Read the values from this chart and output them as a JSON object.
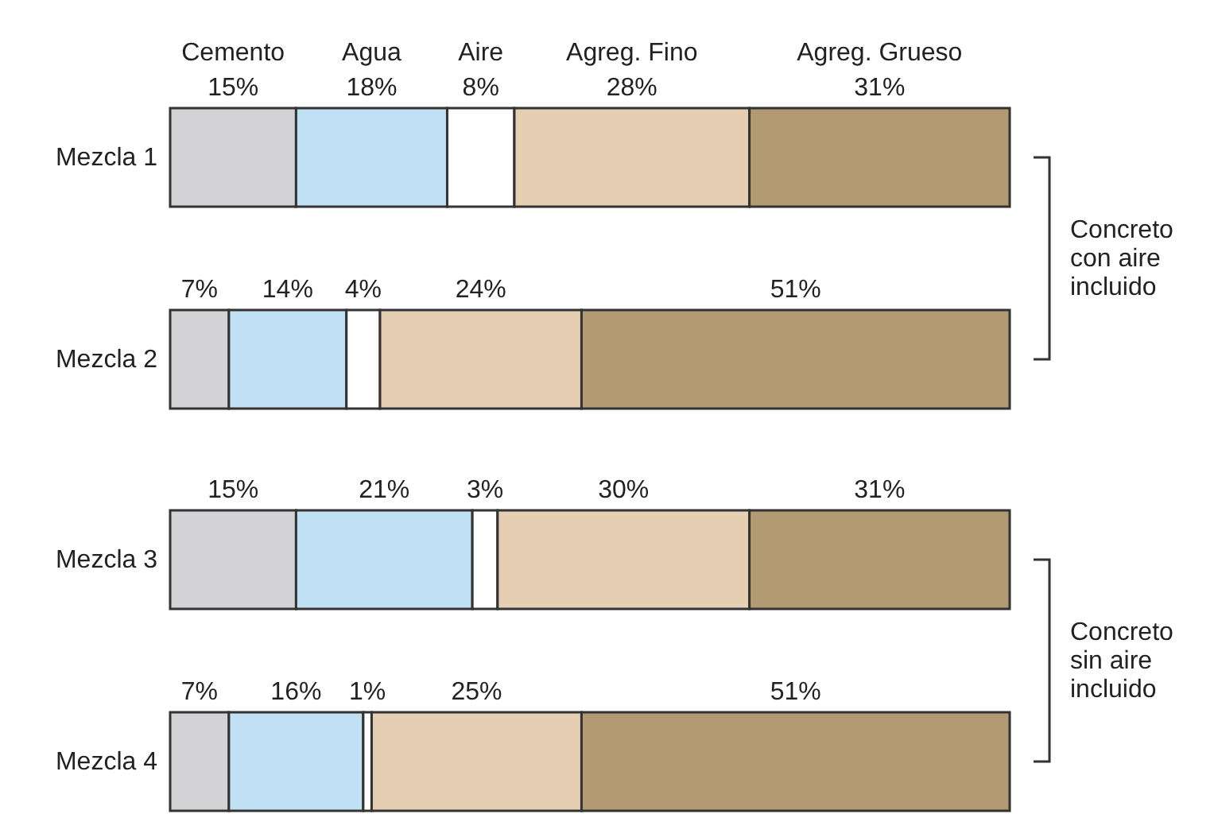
{
  "chart_data": {
    "type": "bar",
    "orientation": "horizontal",
    "stacked": true,
    "tick_labels": "y",
    "categories": [
      "Mezcla 1",
      "Mezcla 2",
      "Mezcla 3",
      "Mezcla 4"
    ],
    "series": [
      {
        "name": "Cemento",
        "color": "#d3d3d5",
        "values": [
          15,
          7,
          15,
          7
        ],
        "value_labels": [
          "15%",
          "7%",
          "15%",
          "7%"
        ]
      },
      {
        "name": "Agua",
        "color": "#bfe1f3",
        "values": [
          18,
          14,
          21,
          16
        ],
        "value_labels": [
          "18%",
          "14%",
          "21%",
          "16%"
        ]
      },
      {
        "name": "Aire",
        "color": "#ffffff",
        "values": [
          8,
          4,
          3,
          1
        ],
        "value_labels": [
          "8%",
          "4%",
          "3%",
          "1%"
        ]
      },
      {
        "name": "Agreg. Fino",
        "color": "#e5ceb2",
        "values": [
          28,
          24,
          30,
          25
        ],
        "value_labels": [
          "28%",
          "24%",
          "30%",
          "25%"
        ]
      },
      {
        "name": "Agreg. Grueso",
        "color": "#b29a72",
        "values": [
          31,
          51,
          31,
          51
        ],
        "value_labels": [
          "31%",
          "51%",
          "31%",
          "51%"
        ]
      }
    ],
    "annotations": [
      "Concreto con aire incluido",
      "Concreto sin aire incluido"
    ]
  }
}
